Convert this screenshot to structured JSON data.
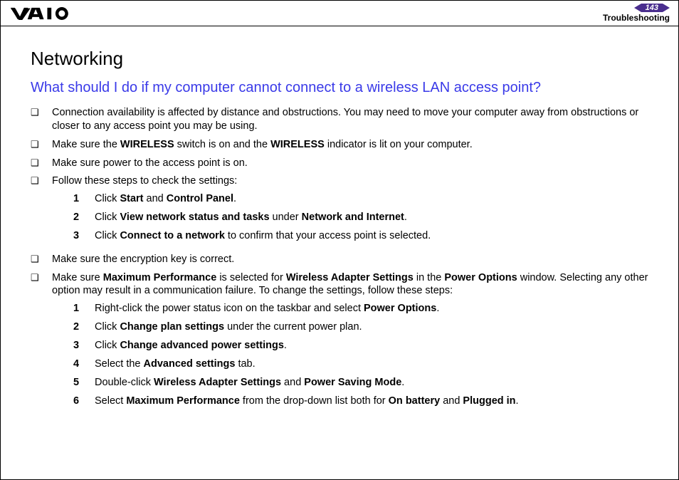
{
  "header": {
    "page_number": "143",
    "section_label": "Troubleshooting",
    "nav_color": "#4a2e8e"
  },
  "content": {
    "title": "Networking",
    "subtitle": "What should I do if my computer cannot connect to a wireless LAN access point?",
    "subtitle_color": "#3a3ae8",
    "bullets": [
      {
        "text": "Connection availability is affected by distance and obstructions. You may need to move your computer away from obstructions or closer to any access point you may be using."
      },
      {
        "html": "Make sure the <b>WIRELESS</b> switch is on and the <b>WIRELESS</b> indicator is lit on your computer."
      },
      {
        "text": "Make sure power to the access point is on."
      },
      {
        "text": "Follow these steps to check the settings:",
        "steps": [
          {
            "n": "1",
            "html": "Click <b>Start</b> and <b>Control Panel</b>."
          },
          {
            "n": "2",
            "html": "Click <b>View network status and tasks</b> under <b>Network and Internet</b>."
          },
          {
            "n": "3",
            "html": "Click <b>Connect to a network</b> to confirm that your access point is selected."
          }
        ]
      },
      {
        "text": "Make sure the encryption key is correct."
      },
      {
        "html": "Make sure <b>Maximum Performance</b> is selected for <b>Wireless Adapter Settings</b> in the <b>Power Options</b> window. Selecting any other option may result in a communication failure. To change the settings, follow these steps:",
        "steps": [
          {
            "n": "1",
            "html": "Right-click the power status icon on the taskbar and select <b>Power Options</b>."
          },
          {
            "n": "2",
            "html": "Click <b>Change plan settings</b> under the current power plan."
          },
          {
            "n": "3",
            "html": "Click <b>Change advanced power settings</b>."
          },
          {
            "n": "4",
            "html": "Select the <b>Advanced settings</b> tab."
          },
          {
            "n": "5",
            "html": "Double-click <b>Wireless Adapter Settings</b> and <b>Power Saving Mode</b>."
          },
          {
            "n": "6",
            "html": "Select <b>Maximum Performance</b> from the drop-down list both for <b>On battery</b> and <b>Plugged in</b>."
          }
        ]
      }
    ]
  }
}
